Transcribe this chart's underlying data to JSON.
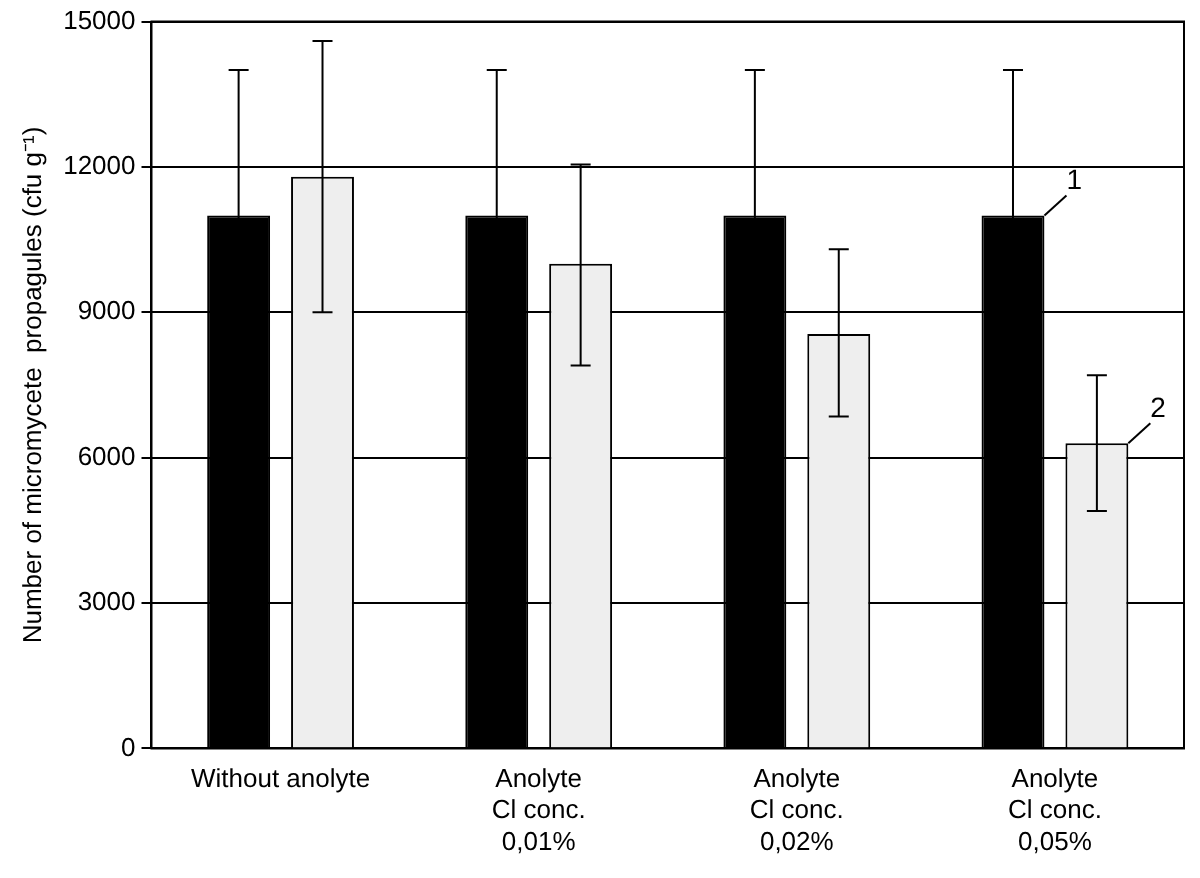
{
  "chart_data": {
    "type": "bar",
    "ylabel": "Number of micromycete  propagules (cfu g⁻¹)",
    "categories": [
      "Without anolyte",
      "Anolyte\nCl conc.\n0,01%",
      "Anolyte\nCl conc.\n0,02%",
      "Anolyte\nCl conc.\n0,05%"
    ],
    "series": [
      {
        "color": "#000000",
        "values": [
          11000,
          11000,
          11000,
          11000
        ],
        "errors": [
          3000,
          3000,
          3000,
          3000
        ]
      },
      {
        "color": "#eeeeee",
        "values": [
          11800,
          10000,
          8550,
          6300
        ],
        "errors": [
          [
            9000,
            14600
          ],
          [
            7900,
            12050
          ],
          [
            6850,
            10300
          ],
          [
            4900,
            7700
          ]
        ]
      }
    ],
    "ylim": [
      0,
      15000
    ],
    "yticks": [
      0,
      3000,
      6000,
      9000,
      12000,
      15000
    ],
    "grid": "y",
    "legend": false,
    "annotations": [
      "1",
      "2"
    ]
  }
}
